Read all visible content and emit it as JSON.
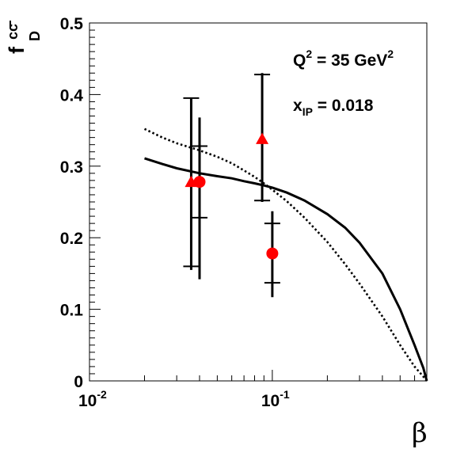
{
  "chart_data": {
    "type": "scatter",
    "xscale": "log",
    "xlim": [
      0.01,
      0.7
    ],
    "ylim": [
      0,
      0.5
    ],
    "xlabel": "β",
    "ylabel": {
      "base": "f",
      "sup": "cc",
      "sub": "D"
    },
    "annotations": [
      {
        "text": "Q",
        "sup": "2",
        "rest": " = 35 GeV",
        "rest_sup": "2"
      },
      {
        "text": "x",
        "sub": "IP",
        "rest": " = 0.018"
      }
    ],
    "xticks": [
      {
        "value": 0.01,
        "base": "10",
        "exp": "-2"
      },
      {
        "value": 0.1,
        "base": "10",
        "exp": "-1"
      }
    ],
    "yticks": [
      {
        "value": 0,
        "label": "0"
      },
      {
        "value": 0.1,
        "label": "0.1"
      },
      {
        "value": 0.2,
        "label": "0.2"
      },
      {
        "value": 0.3,
        "label": "0.3"
      },
      {
        "value": 0.4,
        "label": "0.4"
      },
      {
        "value": 0.5,
        "label": "0.5"
      }
    ],
    "series": [
      {
        "kind": "line",
        "style": "solid",
        "color": "#000000",
        "x": [
          0.02,
          0.025,
          0.03,
          0.04,
          0.05,
          0.06,
          0.07,
          0.08,
          0.09,
          0.1,
          0.12,
          0.15,
          0.2,
          0.25,
          0.3,
          0.4,
          0.5,
          0.6,
          0.67,
          0.7
        ],
        "y": [
          0.311,
          0.303,
          0.297,
          0.29,
          0.286,
          0.283,
          0.279,
          0.276,
          0.273,
          0.27,
          0.263,
          0.252,
          0.233,
          0.214,
          0.193,
          0.15,
          0.1,
          0.05,
          0.018,
          0
        ]
      },
      {
        "kind": "line",
        "style": "dotted",
        "color": "#000000",
        "x": [
          0.02,
          0.025,
          0.03,
          0.04,
          0.05,
          0.06,
          0.07,
          0.08,
          0.09,
          0.1,
          0.12,
          0.15,
          0.2,
          0.25,
          0.3,
          0.4,
          0.5,
          0.6,
          0.67,
          0.7
        ],
        "y": [
          0.352,
          0.34,
          0.332,
          0.322,
          0.313,
          0.304,
          0.294,
          0.285,
          0.276,
          0.267,
          0.251,
          0.228,
          0.194,
          0.163,
          0.136,
          0.09,
          0.05,
          0.02,
          0.006,
          0
        ]
      },
      {
        "kind": "crosses",
        "color": "#000000",
        "points": [
          {
            "x": 0.036,
            "y": 0.275,
            "ylow": 0.16,
            "yhigh": 0.395
          },
          {
            "x": 0.04,
            "y": 0.278,
            "ylow": 0.228,
            "yhigh": 0.328
          },
          {
            "x": 0.088,
            "y": 0.34,
            "ylow": 0.252,
            "yhigh": 0.428
          },
          {
            "x": 0.1,
            "y": 0.178,
            "ylow": 0.137,
            "yhigh": 0.22
          }
        ]
      },
      {
        "kind": "vbars",
        "color": "#000000",
        "points": [
          {
            "x": 0.036,
            "ylow": 0.155,
            "yhigh": 0.395
          },
          {
            "x": 0.04,
            "ylow": 0.142,
            "yhigh": 0.368
          },
          {
            "x": 0.088,
            "ylow": 0.25,
            "yhigh": 0.43
          },
          {
            "x": 0.1,
            "ylow": 0.117,
            "yhigh": 0.237
          }
        ]
      },
      {
        "kind": "markers",
        "marker": "triangle",
        "color": "#ff0000",
        "points": [
          {
            "x": 0.036,
            "y": 0.278
          },
          {
            "x": 0.088,
            "y": 0.338
          }
        ]
      },
      {
        "kind": "markers",
        "marker": "circle",
        "color": "#ff0000",
        "points": [
          {
            "x": 0.04,
            "y": 0.278
          },
          {
            "x": 0.1,
            "y": 0.178
          }
        ]
      }
    ]
  }
}
